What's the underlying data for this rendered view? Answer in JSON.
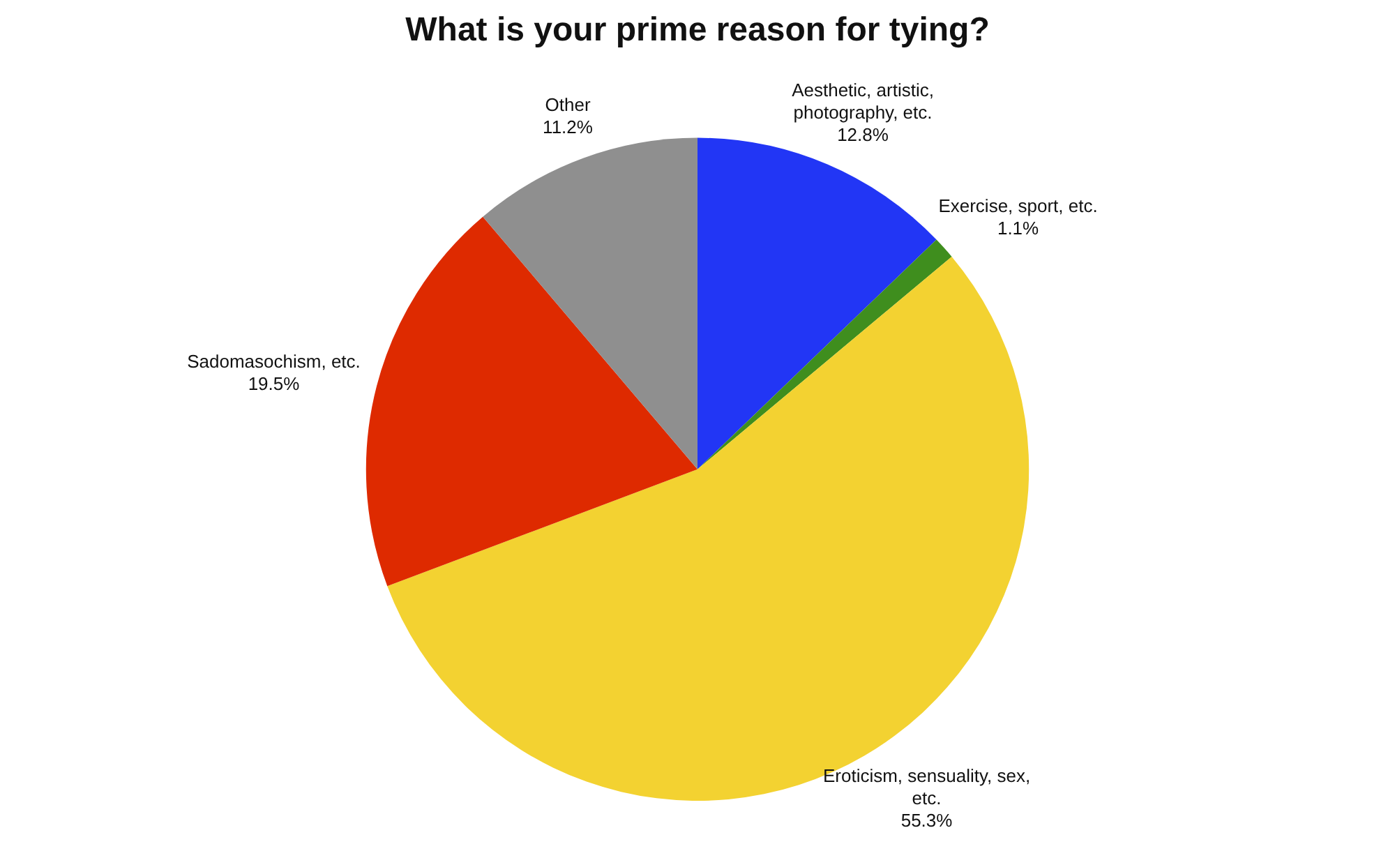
{
  "chart_data": {
    "type": "pie",
    "title": "What is your prime reason for tying?",
    "categories": [
      "Aesthetic, artistic, photography, etc.",
      "Exercise, sport, etc.",
      "Eroticism, sensuality, sex, etc.",
      "Sadomasochism, etc.",
      "Other"
    ],
    "values": [
      12.8,
      1.1,
      55.3,
      19.5,
      11.2
    ],
    "colors": [
      "#2236f5",
      "#3f8e1e",
      "#f3d231",
      "#de2a00",
      "#8f8f8f"
    ],
    "value_labels": [
      "12.8%",
      "1.1%",
      "55.3%",
      "19.5%",
      "11.2%"
    ]
  }
}
